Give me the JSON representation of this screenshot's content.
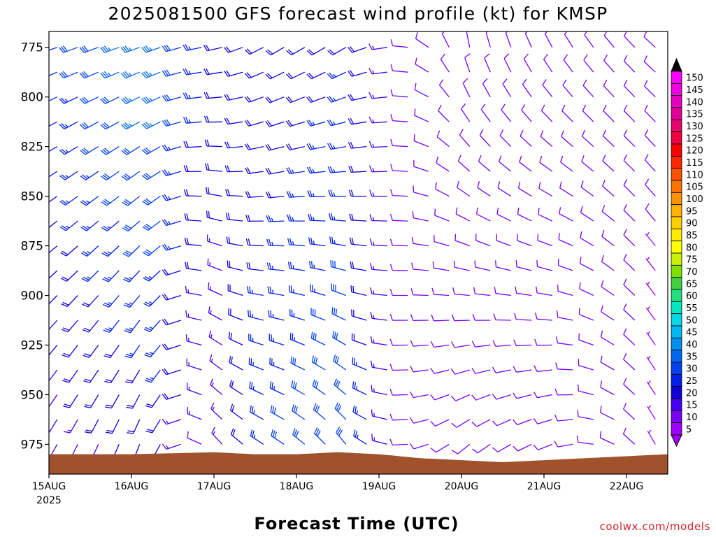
{
  "page": {
    "title": "2025081500 GFS forecast wind profile (kt) for KMSP",
    "credit": "coolwx.com/models"
  },
  "chart_data": {
    "type": "wind-barbs",
    "title": "2025081500 GFS forecast wind profile (kt) for KMSP",
    "xlabel": "Forecast Time (UTC)",
    "ylabel": "",
    "x_tick_labels": [
      "15AUG",
      "16AUG",
      "17AUG",
      "18AUG",
      "19AUG",
      "20AUG",
      "21AUG",
      "22AUG"
    ],
    "x_tick_sublabel": "2025",
    "xlim_days": [
      0,
      7.5
    ],
    "y_tick_labels": [
      "775",
      "800",
      "825",
      "850",
      "875",
      "900",
      "925",
      "950",
      "975"
    ],
    "y_ticks": [
      775,
      800,
      825,
      850,
      875,
      900,
      925,
      950,
      975
    ],
    "ylim_hpa": [
      767,
      990
    ],
    "y_axis_inverted": true,
    "grid": false,
    "units": "kt",
    "legend": {
      "placement": "right colorbar",
      "labels": [
        "150",
        "145",
        "140",
        "135",
        "130",
        "125",
        "120",
        "115",
        "110",
        "105",
        "100",
        "95",
        "90",
        "85",
        "80",
        "75",
        "70",
        "65",
        "60",
        "55",
        "50",
        "45",
        "40",
        "35",
        "30",
        "25",
        "20",
        "15",
        "10",
        "5"
      ],
      "colors": [
        "#ff00ff",
        "#f000e0",
        "#e800c0",
        "#e00098",
        "#e8006c",
        "#f0003c",
        "#ff0000",
        "#ff2800",
        "#ff5000",
        "#ff7400",
        "#ff9200",
        "#ffb000",
        "#ffce00",
        "#ffea00",
        "#ffff00",
        "#c8f000",
        "#80e000",
        "#40d040",
        "#20e080",
        "#00e8c0",
        "#00d8e8",
        "#00b8f0",
        "#0090f0",
        "#0068f0",
        "#0040f0",
        "#0020e8",
        "#1000d8",
        "#4400f0",
        "#7800f8",
        "#a000ff"
      ]
    },
    "colors": {
      "terrain": "#a0522d",
      "slow": "#7f00ff",
      "moderate": "#2a2ad8",
      "fast": "#1e90ff"
    },
    "terrain_surface_hpa": [
      {
        "day": 0.0,
        "p": 980
      },
      {
        "day": 1.0,
        "p": 980
      },
      {
        "day": 2.0,
        "p": 979
      },
      {
        "day": 2.5,
        "p": 980
      },
      {
        "day": 3.0,
        "p": 980
      },
      {
        "day": 3.5,
        "p": 979
      },
      {
        "day": 4.0,
        "p": 980
      },
      {
        "day": 4.5,
        "p": 982
      },
      {
        "day": 5.0,
        "p": 983
      },
      {
        "day": 5.5,
        "p": 984
      },
      {
        "day": 6.0,
        "p": 983
      },
      {
        "day": 6.5,
        "p": 982
      },
      {
        "day": 7.0,
        "p": 981
      },
      {
        "day": 7.5,
        "p": 980
      }
    ],
    "wind_profile_keyframes": [
      {
        "day": 0.0,
        "upper": {
          "dir": 250,
          "spd": 25
        },
        "lower": {
          "dir": 210,
          "spd": 15
        }
      },
      {
        "day": 1.3,
        "upper": {
          "dir": 250,
          "spd": 38
        },
        "lower": {
          "dir": 200,
          "spd": 20
        }
      },
      {
        "day": 2.0,
        "upper": {
          "dir": 260,
          "spd": 22
        },
        "lower": {
          "dir": 320,
          "spd": 10
        }
      },
      {
        "day": 2.7,
        "upper": {
          "dir": 240,
          "spd": 18
        },
        "lower": {
          "dir": 300,
          "spd": 28
        }
      },
      {
        "day": 3.6,
        "upper": {
          "dir": 240,
          "spd": 22
        },
        "lower": {
          "dir": 320,
          "spd": 32
        }
      },
      {
        "day": 4.3,
        "upper": {
          "dir": 270,
          "spd": 12
        },
        "lower": {
          "dir": 270,
          "spd": 9
        }
      },
      {
        "day": 5.0,
        "upper": {
          "dir": 350,
          "spd": 12
        },
        "lower": {
          "dir": 230,
          "spd": 12
        }
      },
      {
        "day": 6.2,
        "upper": {
          "dir": 330,
          "spd": 10
        },
        "lower": {
          "dir": 250,
          "spd": 12
        }
      },
      {
        "day": 7.5,
        "upper": {
          "dir": 310,
          "spd": 8
        },
        "lower": {
          "dir": 340,
          "spd": 6
        }
      }
    ]
  }
}
